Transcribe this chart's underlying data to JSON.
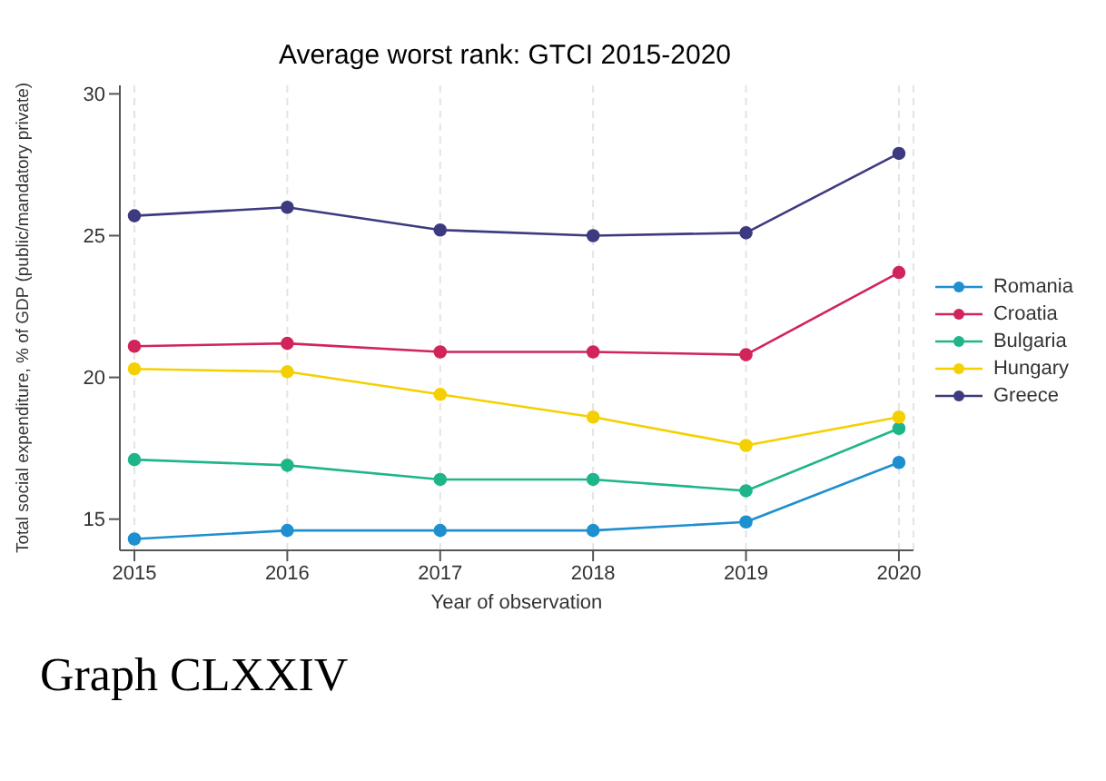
{
  "chart_data": {
    "type": "line",
    "title": "Average worst rank: GTCI 2015-2020",
    "xlabel": "Year of observation",
    "ylabel": "Total social expenditure, % of GDP (public/mandatory private)",
    "categories": [
      "2015",
      "2016",
      "2017",
      "2018",
      "2019",
      "2020"
    ],
    "series": [
      {
        "name": "Romania",
        "color": "#1f8fd0",
        "values": [
          14.3,
          14.6,
          14.6,
          14.6,
          14.9,
          17.0
        ]
      },
      {
        "name": "Croatia",
        "color": "#d0245a",
        "values": [
          21.1,
          21.2,
          20.9,
          20.9,
          20.8,
          23.7
        ]
      },
      {
        "name": "Bulgaria",
        "color": "#1fb58a",
        "values": [
          17.1,
          16.9,
          16.4,
          16.4,
          16.0,
          18.2
        ]
      },
      {
        "name": "Hungary",
        "color": "#f5d000",
        "values": [
          20.3,
          20.2,
          19.4,
          18.6,
          17.6,
          18.6
        ]
      },
      {
        "name": "Greece",
        "color": "#3d3a80",
        "values": [
          25.7,
          26.0,
          25.2,
          25.0,
          25.1,
          27.9
        ]
      }
    ],
    "ylim": [
      13.9,
      30.3
    ],
    "yticks": [
      15,
      20,
      25,
      30
    ],
    "grid": "x",
    "legend": "right",
    "marker": "circle",
    "line_style": "solid",
    "annotations": [
      "Graph CLXXIV"
    ]
  }
}
